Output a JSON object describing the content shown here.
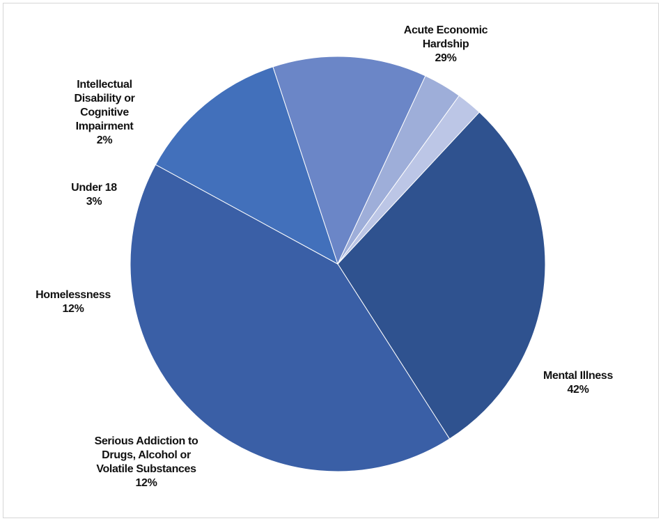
{
  "chart_data": {
    "type": "pie",
    "title": "",
    "slices": [
      {
        "label": "Acute Economic Hardship",
        "display": "29%",
        "value": 29,
        "color": "#2f528f"
      },
      {
        "label": "Mental Illness",
        "display": "42%",
        "value": 42,
        "color": "#3a5fa6"
      },
      {
        "label": "Serious Addiction to Drugs, Alcohol or Volatile Substances",
        "display": "12%",
        "value": 12,
        "color": "#4270bb"
      },
      {
        "label": "Homelessness",
        "display": "12%",
        "value": 12,
        "color": "#6b86c7"
      },
      {
        "label": "Under 18",
        "display": "3%",
        "value": 3,
        "color": "#9eaed9"
      },
      {
        "label": "Intellectual Disability or Cognitive Impairment",
        "display": "2%",
        "value": 2,
        "color": "#bcc6e6"
      }
    ],
    "start_angle_deg": 47,
    "direction": "clockwise",
    "legend": "none",
    "data_labels": "outside"
  }
}
